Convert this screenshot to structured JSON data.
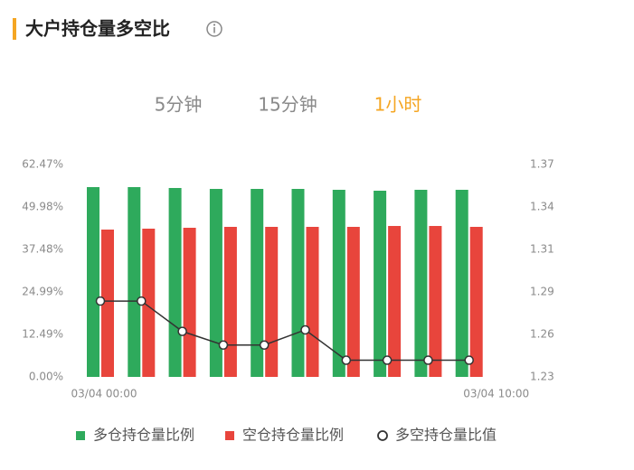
{
  "header": {
    "title": "大户持仓量多空比"
  },
  "tabs": [
    "5分钟",
    "15分钟",
    "1小时"
  ],
  "active_tab": 2,
  "chart_data": {
    "type": "bar",
    "categories": [
      "03/04 00:00",
      null,
      null,
      null,
      null,
      null,
      null,
      null,
      null,
      "03/04 10:00"
    ],
    "series": [
      {
        "name": "多仓持仓量比例",
        "color": "#2eaa5c",
        "values": [
          55.82,
          55.82,
          55.56,
          55.29,
          55.29,
          55.29,
          55.03,
          54.76,
          55.03,
          55.03
        ]
      },
      {
        "name": "空仓持仓量比例",
        "color": "#e8453c",
        "values": [
          43.33,
          43.6,
          43.86,
          44.13,
          44.13,
          44.13,
          44.13,
          44.39,
          44.39,
          44.13
        ]
      },
      {
        "name": "多空持仓量比值",
        "color": "#333333",
        "type": "line",
        "axis": "y2",
        "values": [
          1.28,
          1.28,
          1.26,
          1.251,
          1.251,
          1.261,
          1.241,
          1.241,
          1.241,
          1.241
        ]
      }
    ],
    "ylim": [
      0,
      62.47
    ],
    "yticks": [
      {
        "value": 0,
        "label": "0.00%"
      },
      {
        "value": 12.494,
        "label": "12.49%"
      },
      {
        "value": 24.988,
        "label": "24.99%"
      },
      {
        "value": 37.482,
        "label": "37.48%"
      },
      {
        "value": 49.976,
        "label": "49.98%"
      },
      {
        "value": 62.47,
        "label": "62.47%"
      }
    ],
    "y2lim": [
      1.23,
      1.37
    ],
    "y2ticks": [
      1.23,
      {
        "value": 1.258,
        "label": "1.26"
      },
      {
        "value": 1.286,
        "label": "1.29"
      },
      {
        "value": 1.314,
        "label": "1.31"
      },
      {
        "value": 1.342,
        "label": "1.34"
      },
      1.37
    ]
  }
}
